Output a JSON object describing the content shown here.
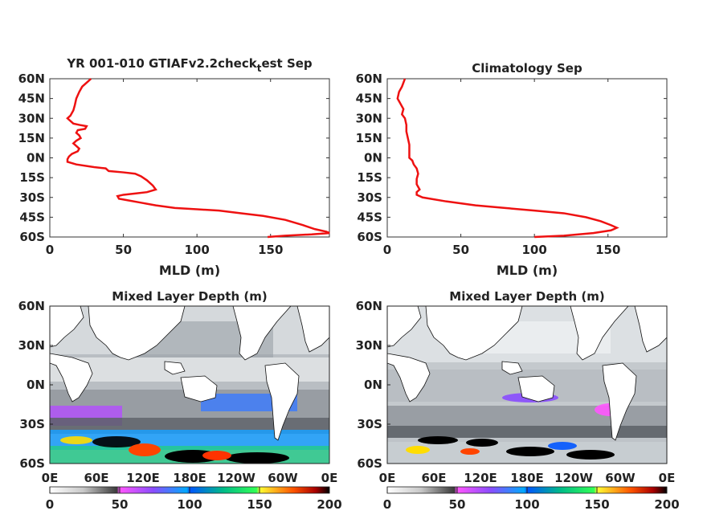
{
  "chart_data": [
    {
      "type": "line",
      "title": "YR 001-010 GTIAFv2.2check",
      "title_subscript": "t",
      "title_suffix": "est Sep",
      "xlabel": "MLD (m)",
      "ylabel": "",
      "xlim": [
        0,
        190
      ],
      "ylim": [
        -60,
        60
      ],
      "xticks": [
        "0",
        "50",
        "100",
        "150"
      ],
      "yticks": [
        "60N",
        "45N",
        "30N",
        "15N",
        "0N",
        "15S",
        "30S",
        "45S",
        "60S"
      ],
      "line_color": "#ee1111",
      "series": [
        {
          "points": [
            [
              28,
              60
            ],
            [
              26,
              58
            ],
            [
              22,
              54
            ],
            [
              20,
              50
            ],
            [
              18,
              45
            ],
            [
              17,
              40
            ],
            [
              16,
              36
            ],
            [
              14,
              32
            ],
            [
              12,
              30
            ],
            [
              14,
              28
            ],
            [
              16,
              26
            ],
            [
              20,
              25
            ],
            [
              25,
              24
            ],
            [
              24,
              22
            ],
            [
              19,
              21
            ],
            [
              18,
              19
            ],
            [
              20,
              17
            ],
            [
              21,
              15
            ],
            [
              18,
              13
            ],
            [
              16,
              11
            ],
            [
              18,
              9
            ],
            [
              20,
              7
            ],
            [
              19,
              5
            ],
            [
              15,
              3
            ],
            [
              13,
              1
            ],
            [
              12,
              -1
            ],
            [
              12,
              -3
            ],
            [
              18,
              -5
            ],
            [
              30,
              -7
            ],
            [
              38,
              -8
            ],
            [
              40,
              -10
            ],
            [
              50,
              -11
            ],
            [
              58,
              -12
            ],
            [
              62,
              -14
            ],
            [
              66,
              -17
            ],
            [
              70,
              -21
            ],
            [
              72,
              -24
            ],
            [
              66,
              -26
            ],
            [
              58,
              -27
            ],
            [
              50,
              -28
            ],
            [
              46,
              -29
            ],
            [
              47,
              -31
            ],
            [
              52,
              -32
            ],
            [
              62,
              -34
            ],
            [
              72,
              -36
            ],
            [
              85,
              -38
            ],
            [
              100,
              -39
            ],
            [
              115,
              -40
            ],
            [
              130,
              -42
            ],
            [
              145,
              -44
            ],
            [
              160,
              -47
            ],
            [
              172,
              -51
            ],
            [
              180,
              -54
            ],
            [
              188,
              -56
            ],
            [
              190,
              -57
            ],
            [
              178,
              -58
            ],
            [
              160,
              -59
            ],
            [
              148,
              -60
            ]
          ]
        }
      ]
    },
    {
      "type": "line",
      "title": "Climatology Sep",
      "xlabel": "MLD (m)",
      "ylabel": "",
      "xlim": [
        0,
        190
      ],
      "ylim": [
        -60,
        60
      ],
      "xticks": [
        "0",
        "50",
        "100",
        "150"
      ],
      "yticks": [
        "60N",
        "45N",
        "30N",
        "15N",
        "0N",
        "15S",
        "30S",
        "45S",
        "60S"
      ],
      "line_color": "#ee1111",
      "series": [
        {
          "points": [
            [
              12,
              60
            ],
            [
              11,
              57
            ],
            [
              10,
              54
            ],
            [
              8,
              50
            ],
            [
              7,
              45
            ],
            [
              9,
              41
            ],
            [
              11,
              37
            ],
            [
              10,
              33
            ],
            [
              12,
              30
            ],
            [
              13,
              25
            ],
            [
              13,
              20
            ],
            [
              14,
              15
            ],
            [
              15,
              10
            ],
            [
              15,
              5
            ],
            [
              15,
              0
            ],
            [
              17,
              -2
            ],
            [
              18,
              -5
            ],
            [
              20,
              -8
            ],
            [
              21,
              -12
            ],
            [
              20,
              -16
            ],
            [
              20,
              -20
            ],
            [
              22,
              -24
            ],
            [
              20,
              -26
            ],
            [
              20,
              -28
            ],
            [
              24,
              -30
            ],
            [
              40,
              -33
            ],
            [
              60,
              -36
            ],
            [
              80,
              -38
            ],
            [
              100,
              -40
            ],
            [
              120,
              -42
            ],
            [
              135,
              -45
            ],
            [
              145,
              -48
            ],
            [
              152,
              -51
            ],
            [
              156,
              -53
            ],
            [
              152,
              -55
            ],
            [
              140,
              -57
            ],
            [
              120,
              -59
            ],
            [
              100,
              -60
            ]
          ]
        }
      ]
    },
    {
      "type": "heatmap",
      "title": "Mixed Layer Depth (m)",
      "xticks": [
        "0E",
        "60E",
        "120E",
        "180E",
        "120W",
        "60W",
        "0E"
      ],
      "yticks": [
        "60N",
        "30N",
        "0N",
        "30S",
        "60S"
      ],
      "colorbar": {
        "ticks": [
          "0",
          "50",
          "100",
          "150",
          "200"
        ],
        "range": [
          0,
          200
        ]
      }
    },
    {
      "type": "heatmap",
      "title": "Mixed Layer Depth (m)",
      "xticks": [
        "0E",
        "60E",
        "120E",
        "180E",
        "120W",
        "60W",
        "0E"
      ],
      "yticks": [
        "60N",
        "30N",
        "0N",
        "30S",
        "60S"
      ],
      "colorbar": {
        "ticks": [
          "0",
          "50",
          "100",
          "150",
          "200"
        ],
        "range": [
          0,
          200
        ]
      }
    }
  ]
}
